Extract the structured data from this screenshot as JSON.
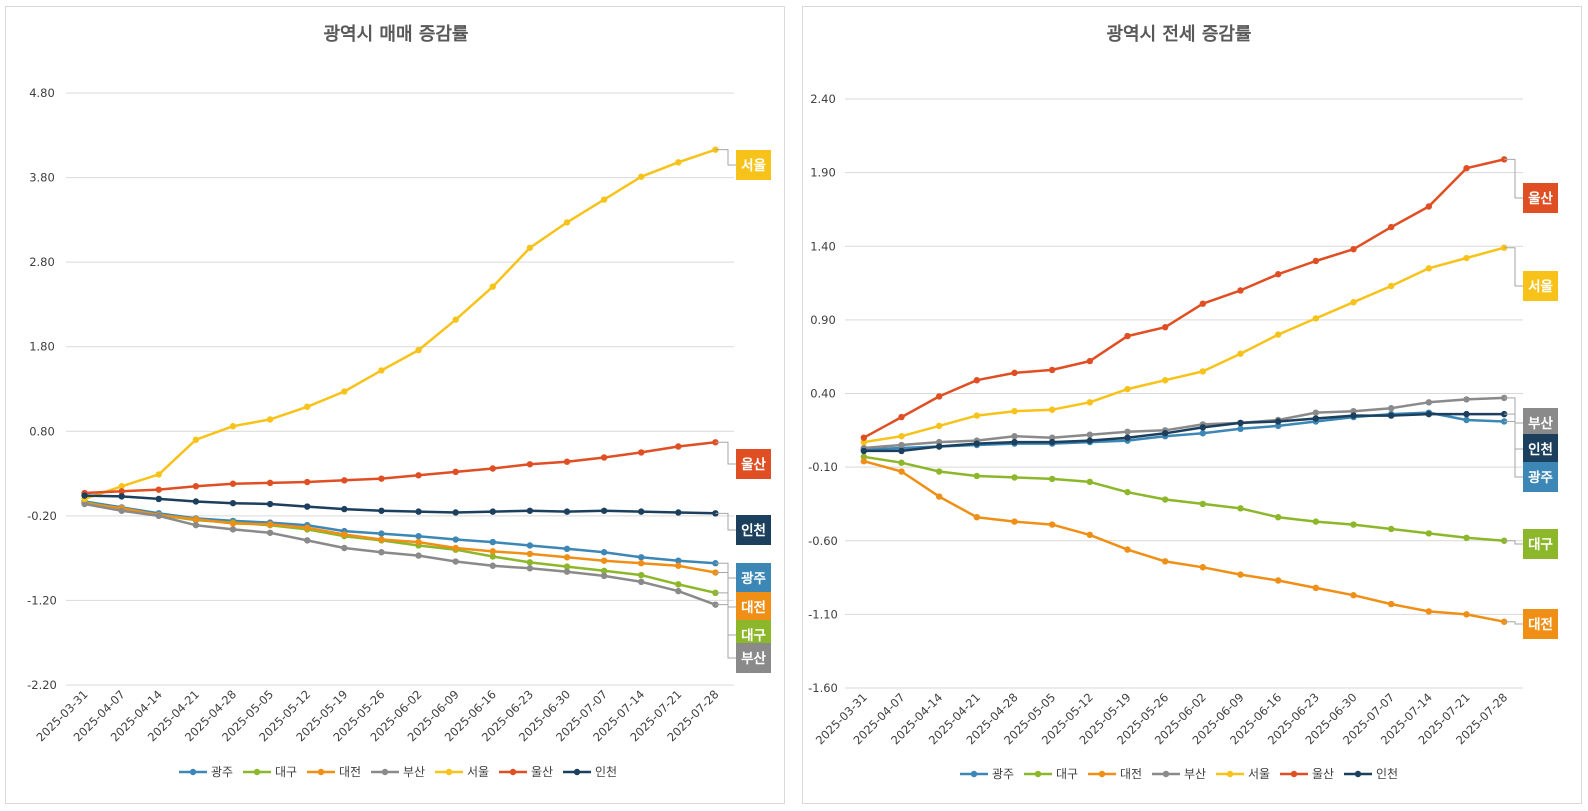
{
  "chart_data": [
    {
      "type": "line",
      "title": "광역시 매매 증감률",
      "xlabel": "",
      "ylabel": "",
      "x": [
        "2025-03-31",
        "2025-04-07",
        "2025-04-14",
        "2025-04-21",
        "2025-04-28",
        "2025-05-05",
        "2025-05-12",
        "2025-05-19",
        "2025-05-26",
        "2025-06-02",
        "2025-06-09",
        "2025-06-16",
        "2025-06-23",
        "2025-06-30",
        "2025-07-07",
        "2025-07-14",
        "2025-07-21",
        "2025-07-28"
      ],
      "ylim": [
        -2.2,
        4.8
      ],
      "yticks": [
        "4.80",
        "3.80",
        "2.80",
        "1.80",
        "0.80",
        "-0.20",
        "-1.20",
        "-2.20"
      ],
      "grid": true,
      "legend_position": "bottom",
      "series": [
        {
          "name": "광주",
          "color": "#3c87b5",
          "values": [
            -0.03,
            -0.1,
            -0.17,
            -0.23,
            -0.26,
            -0.28,
            -0.31,
            -0.38,
            -0.41,
            -0.44,
            -0.48,
            -0.51,
            -0.55,
            -0.59,
            -0.63,
            -0.69,
            -0.73,
            -0.76
          ]
        },
        {
          "name": "대구",
          "color": "#8db72a",
          "values": [
            -0.04,
            -0.12,
            -0.19,
            -0.25,
            -0.28,
            -0.31,
            -0.36,
            -0.44,
            -0.49,
            -0.55,
            -0.6,
            -0.68,
            -0.75,
            -0.8,
            -0.85,
            -0.9,
            -1.01,
            -1.11
          ]
        },
        {
          "name": "대전",
          "color": "#ef8f16",
          "values": [
            -0.05,
            -0.11,
            -0.19,
            -0.24,
            -0.29,
            -0.3,
            -0.34,
            -0.42,
            -0.48,
            -0.51,
            -0.58,
            -0.62,
            -0.65,
            -0.69,
            -0.73,
            -0.76,
            -0.79,
            -0.87
          ]
        },
        {
          "name": "부산",
          "color": "#8a8a8a",
          "values": [
            -0.06,
            -0.14,
            -0.2,
            -0.31,
            -0.36,
            -0.4,
            -0.49,
            -0.58,
            -0.63,
            -0.67,
            -0.74,
            -0.79,
            -0.82,
            -0.86,
            -0.91,
            -0.98,
            -1.09,
            -1.25
          ]
        },
        {
          "name": "서울",
          "color": "#f7c31a",
          "values": [
            0.0,
            0.15,
            0.29,
            0.7,
            0.86,
            0.94,
            1.09,
            1.27,
            1.52,
            1.76,
            2.12,
            2.51,
            2.97,
            3.27,
            3.54,
            3.81,
            3.98,
            4.13
          ]
        },
        {
          "name": "울산",
          "color": "#e04e23",
          "values": [
            0.07,
            0.09,
            0.11,
            0.15,
            0.18,
            0.19,
            0.2,
            0.22,
            0.24,
            0.28,
            0.32,
            0.36,
            0.41,
            0.44,
            0.49,
            0.55,
            0.62,
            0.67
          ]
        },
        {
          "name": "인천",
          "color": "#1b3f5c",
          "values": [
            0.04,
            0.03,
            0.0,
            -0.03,
            -0.05,
            -0.06,
            -0.09,
            -0.12,
            -0.14,
            -0.15,
            -0.16,
            -0.15,
            -0.14,
            -0.15,
            -0.14,
            -0.15,
            -0.16,
            -0.17
          ]
        }
      ],
      "end_labels": [
        {
          "text": "서울",
          "color": "#f7c31a"
        },
        {
          "text": "울산",
          "color": "#e04e23"
        },
        {
          "text": "인천",
          "color": "#1b3f5c"
        },
        {
          "text": "광주",
          "color": "#3c87b5"
        },
        {
          "text": "대전",
          "color": "#ef8f16"
        },
        {
          "text": "대구",
          "color": "#8db72a"
        },
        {
          "text": "부산",
          "color": "#8a8a8a"
        }
      ]
    },
    {
      "type": "line",
      "title": "광역시 전세 증감률",
      "xlabel": "",
      "ylabel": "",
      "x": [
        "2025-03-31",
        "2025-04-07",
        "2025-04-14",
        "2025-04-21",
        "2025-04-28",
        "2025-05-05",
        "2025-05-12",
        "2025-05-19",
        "2025-05-26",
        "2025-06-02",
        "2025-06-09",
        "2025-06-16",
        "2025-06-23",
        "2025-06-30",
        "2025-07-07",
        "2025-07-14",
        "2025-07-21",
        "2025-07-28"
      ],
      "ylim": [
        -1.6,
        2.4
      ],
      "yticks": [
        "2.40",
        "1.90",
        "1.40",
        "0.90",
        "0.40",
        "-0.10",
        "-0.60",
        "-1.10",
        "-1.60"
      ],
      "grid": true,
      "legend_position": "bottom",
      "series": [
        {
          "name": "광주",
          "color": "#3c87b5",
          "values": [
            0.02,
            0.03,
            0.04,
            0.05,
            0.06,
            0.06,
            0.07,
            0.08,
            0.11,
            0.13,
            0.16,
            0.18,
            0.21,
            0.24,
            0.26,
            0.27,
            0.22,
            0.21
          ]
        },
        {
          "name": "대구",
          "color": "#8db72a",
          "values": [
            -0.03,
            -0.07,
            -0.13,
            -0.16,
            -0.17,
            -0.18,
            -0.2,
            -0.27,
            -0.32,
            -0.35,
            -0.38,
            -0.44,
            -0.47,
            -0.49,
            -0.52,
            -0.55,
            -0.58,
            -0.6
          ]
        },
        {
          "name": "대전",
          "color": "#ef8f16",
          "values": [
            -0.06,
            -0.13,
            -0.3,
            -0.44,
            -0.47,
            -0.49,
            -0.56,
            -0.66,
            -0.74,
            -0.78,
            -0.83,
            -0.87,
            -0.92,
            -0.97,
            -1.03,
            -1.08,
            -1.1,
            -1.15
          ]
        },
        {
          "name": "부산",
          "color": "#8a8a8a",
          "values": [
            0.03,
            0.05,
            0.07,
            0.08,
            0.11,
            0.1,
            0.12,
            0.14,
            0.15,
            0.19,
            0.2,
            0.22,
            0.27,
            0.28,
            0.3,
            0.34,
            0.36,
            0.37
          ]
        },
        {
          "name": "서울",
          "color": "#f7c31a",
          "values": [
            0.07,
            0.11,
            0.18,
            0.25,
            0.28,
            0.29,
            0.34,
            0.43,
            0.49,
            0.55,
            0.67,
            0.8,
            0.91,
            1.02,
            1.13,
            1.25,
            1.32,
            1.39
          ]
        },
        {
          "name": "울산",
          "color": "#e04e23",
          "values": [
            0.1,
            0.24,
            0.38,
            0.49,
            0.54,
            0.56,
            0.62,
            0.79,
            0.85,
            1.01,
            1.1,
            1.21,
            1.3,
            1.38,
            1.53,
            1.67,
            1.93,
            1.99
          ]
        },
        {
          "name": "인천",
          "color": "#1b3f5c",
          "values": [
            0.01,
            0.01,
            0.04,
            0.06,
            0.07,
            0.07,
            0.08,
            0.1,
            0.13,
            0.17,
            0.2,
            0.21,
            0.23,
            0.25,
            0.25,
            0.26,
            0.26,
            0.26
          ]
        }
      ],
      "end_labels": [
        {
          "text": "울산",
          "color": "#e04e23"
        },
        {
          "text": "서울",
          "color": "#f7c31a"
        },
        {
          "text": "부산",
          "color": "#8a8a8a"
        },
        {
          "text": "인천",
          "color": "#1b3f5c"
        },
        {
          "text": "광주",
          "color": "#3c87b5"
        },
        {
          "text": "대구",
          "color": "#8db72a"
        },
        {
          "text": "대전",
          "color": "#ef8f16"
        }
      ]
    }
  ]
}
